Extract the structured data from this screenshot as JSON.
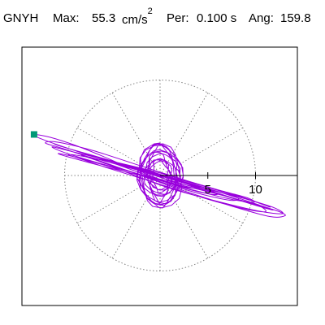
{
  "header": {
    "station": "GNYH",
    "max_label": "Max:",
    "max_value": "55.3",
    "max_unit": "cm/s",
    "max_unit_exp": "2",
    "per_label": "Per:",
    "per_value": "0.100 s",
    "ang_label": "Ang:",
    "ang_value": "159.8"
  },
  "colors": {
    "trace": "#9900dd",
    "marker": "#009977",
    "grid": "#808080",
    "axis": "#000000",
    "frame": "#000000"
  },
  "chart_data": {
    "type": "scatter",
    "title": "",
    "xlabel": "",
    "ylabel": "",
    "xlim": [
      -15,
      15
    ],
    "ylim": [
      -15,
      15
    ],
    "grid": "polar",
    "rings": [
      10
    ],
    "spokes_deg": 30,
    "tick_labels": [
      {
        "value": 5,
        "label": "5"
      },
      {
        "value": 10,
        "label": "10"
      }
    ],
    "marker": {
      "x": -13.2,
      "y": 4.3,
      "shape": "square"
    },
    "particle_path": [
      [
        0,
        0
      ],
      [
        -3.1,
        0.8
      ],
      [
        -6.2,
        2.1
      ],
      [
        -9.0,
        3.2
      ],
      [
        -11.5,
        4.0
      ],
      [
        -13.2,
        4.3
      ],
      [
        -12.6,
        3.9
      ],
      [
        -9.5,
        2.8
      ],
      [
        -5.0,
        1.4
      ],
      [
        0.5,
        -0.2
      ],
      [
        5.2,
        -1.6
      ],
      [
        9.4,
        -2.9
      ],
      [
        11.8,
        -3.6
      ],
      [
        10.6,
        -3.3
      ],
      [
        6.3,
        -2.0
      ],
      [
        1.0,
        -0.5
      ],
      [
        -4.2,
        1.2
      ],
      [
        -8.6,
        2.5
      ],
      [
        -11.0,
        3.3
      ],
      [
        -10.2,
        3.0
      ],
      [
        -6.0,
        1.8
      ],
      [
        -1.0,
        0.3
      ],
      [
        4.1,
        -1.1
      ],
      [
        8.3,
        -2.4
      ],
      [
        11.3,
        -3.4
      ],
      [
        12.5,
        -3.8
      ],
      [
        13.1,
        -4.2
      ],
      [
        11.5,
        -4.3
      ],
      [
        7.5,
        -3.2
      ],
      [
        2.5,
        -1.6
      ],
      [
        -2.0,
        0.0
      ],
      [
        -6.5,
        1.6
      ],
      [
        -10.1,
        2.8
      ],
      [
        -12.0,
        3.4
      ],
      [
        -10.8,
        3.5
      ],
      [
        -7.0,
        2.6
      ],
      [
        -2.0,
        1.0
      ],
      [
        3.0,
        -0.6
      ],
      [
        7.4,
        -1.9
      ],
      [
        10.5,
        -2.9
      ],
      [
        11.5,
        -3.3
      ],
      [
        9.2,
        -2.5
      ],
      [
        4.5,
        -1.1
      ],
      [
        -0.5,
        0.4
      ],
      [
        -5.5,
        1.6
      ],
      [
        -9.2,
        2.5
      ],
      [
        -11.3,
        3.0
      ],
      [
        -10.0,
        2.4
      ],
      [
        -6.4,
        1.3
      ],
      [
        -2.4,
        0.2
      ],
      [
        1.8,
        -0.8
      ],
      [
        6.0,
        -1.7
      ],
      [
        9.5,
        -2.6
      ],
      [
        12.0,
        -3.4
      ],
      [
        12.8,
        -4.0
      ],
      [
        10.2,
        -3.7
      ],
      [
        5.6,
        -2.6
      ],
      [
        0.6,
        -1.2
      ],
      [
        -4.3,
        0.6
      ],
      [
        -8.4,
        1.8
      ],
      [
        -10.6,
        2.3
      ],
      [
        -9.8,
        2.0
      ],
      [
        -6.1,
        1.0
      ],
      [
        -1.6,
        -0.1
      ],
      [
        3.0,
        -1.2
      ],
      [
        7.0,
        -2.2
      ],
      [
        10.2,
        -3.1
      ],
      [
        11.0,
        -3.8
      ],
      [
        8.4,
        -3.4
      ],
      [
        3.7,
        -2.1
      ],
      [
        -1.0,
        -0.6
      ],
      [
        -5.2,
        0.7
      ],
      [
        -8.2,
        1.7
      ],
      [
        -9.6,
        2.2
      ],
      [
        -8.0,
        2.0
      ],
      [
        -4.5,
        1.3
      ],
      [
        -0.3,
        0.2
      ],
      [
        3.8,
        -0.9
      ],
      [
        7.2,
        -1.8
      ],
      [
        9.3,
        -2.4
      ],
      [
        9.8,
        -2.8
      ],
      [
        7.5,
        -2.5
      ],
      [
        3.4,
        -1.5
      ],
      [
        -0.8,
        -0.3
      ],
      [
        -4.6,
        0.9
      ],
      [
        -7.3,
        1.8
      ],
      [
        -8.2,
        2.1
      ],
      [
        -6.5,
        1.7
      ],
      [
        -3.2,
        0.8
      ],
      [
        0.5,
        -0.2
      ],
      [
        4.0,
        -1.1
      ],
      [
        6.8,
        -1.9
      ],
      [
        8.2,
        -2.4
      ],
      [
        7.4,
        -2.6
      ],
      [
        4.5,
        -2.0
      ],
      [
        0.8,
        -0.9
      ],
      [
        -2.8,
        0.3
      ],
      [
        -5.6,
        1.2
      ],
      [
        -6.8,
        1.7
      ],
      [
        -5.4,
        1.5
      ],
      [
        -2.5,
        0.8
      ],
      [
        0.8,
        -0.2
      ],
      [
        3.7,
        -1.1
      ],
      [
        5.6,
        -1.7
      ],
      [
        5.9,
        -2.0
      ],
      [
        4.0,
        -1.7
      ],
      [
        1.2,
        -0.9
      ],
      [
        -1.6,
        0.1
      ],
      [
        -3.8,
        0.9
      ],
      [
        -4.6,
        1.2
      ],
      [
        -3.6,
        1.1
      ],
      [
        -1.2,
        0.5
      ],
      [
        1.3,
        -0.3
      ],
      [
        3.2,
        -0.9
      ],
      [
        3.8,
        -1.3
      ],
      [
        2.6,
        -1.2
      ],
      [
        0.5,
        -0.6
      ],
      [
        -1.5,
        0.2
      ],
      [
        -2.6,
        0.7
      ],
      [
        -2.4,
        0.8
      ],
      [
        -1.0,
        0.4
      ],
      [
        0.6,
        -0.1
      ],
      [
        1.7,
        -0.6
      ],
      [
        1.8,
        -0.8
      ],
      [
        0.9,
        -0.5
      ],
      [
        -0.3,
        0.0
      ],
      [
        -1.0,
        0.3
      ],
      [
        -0.8,
        0.3
      ],
      [
        -0.1,
        0.1
      ],
      [
        0.3,
        -0.1
      ]
    ]
  }
}
